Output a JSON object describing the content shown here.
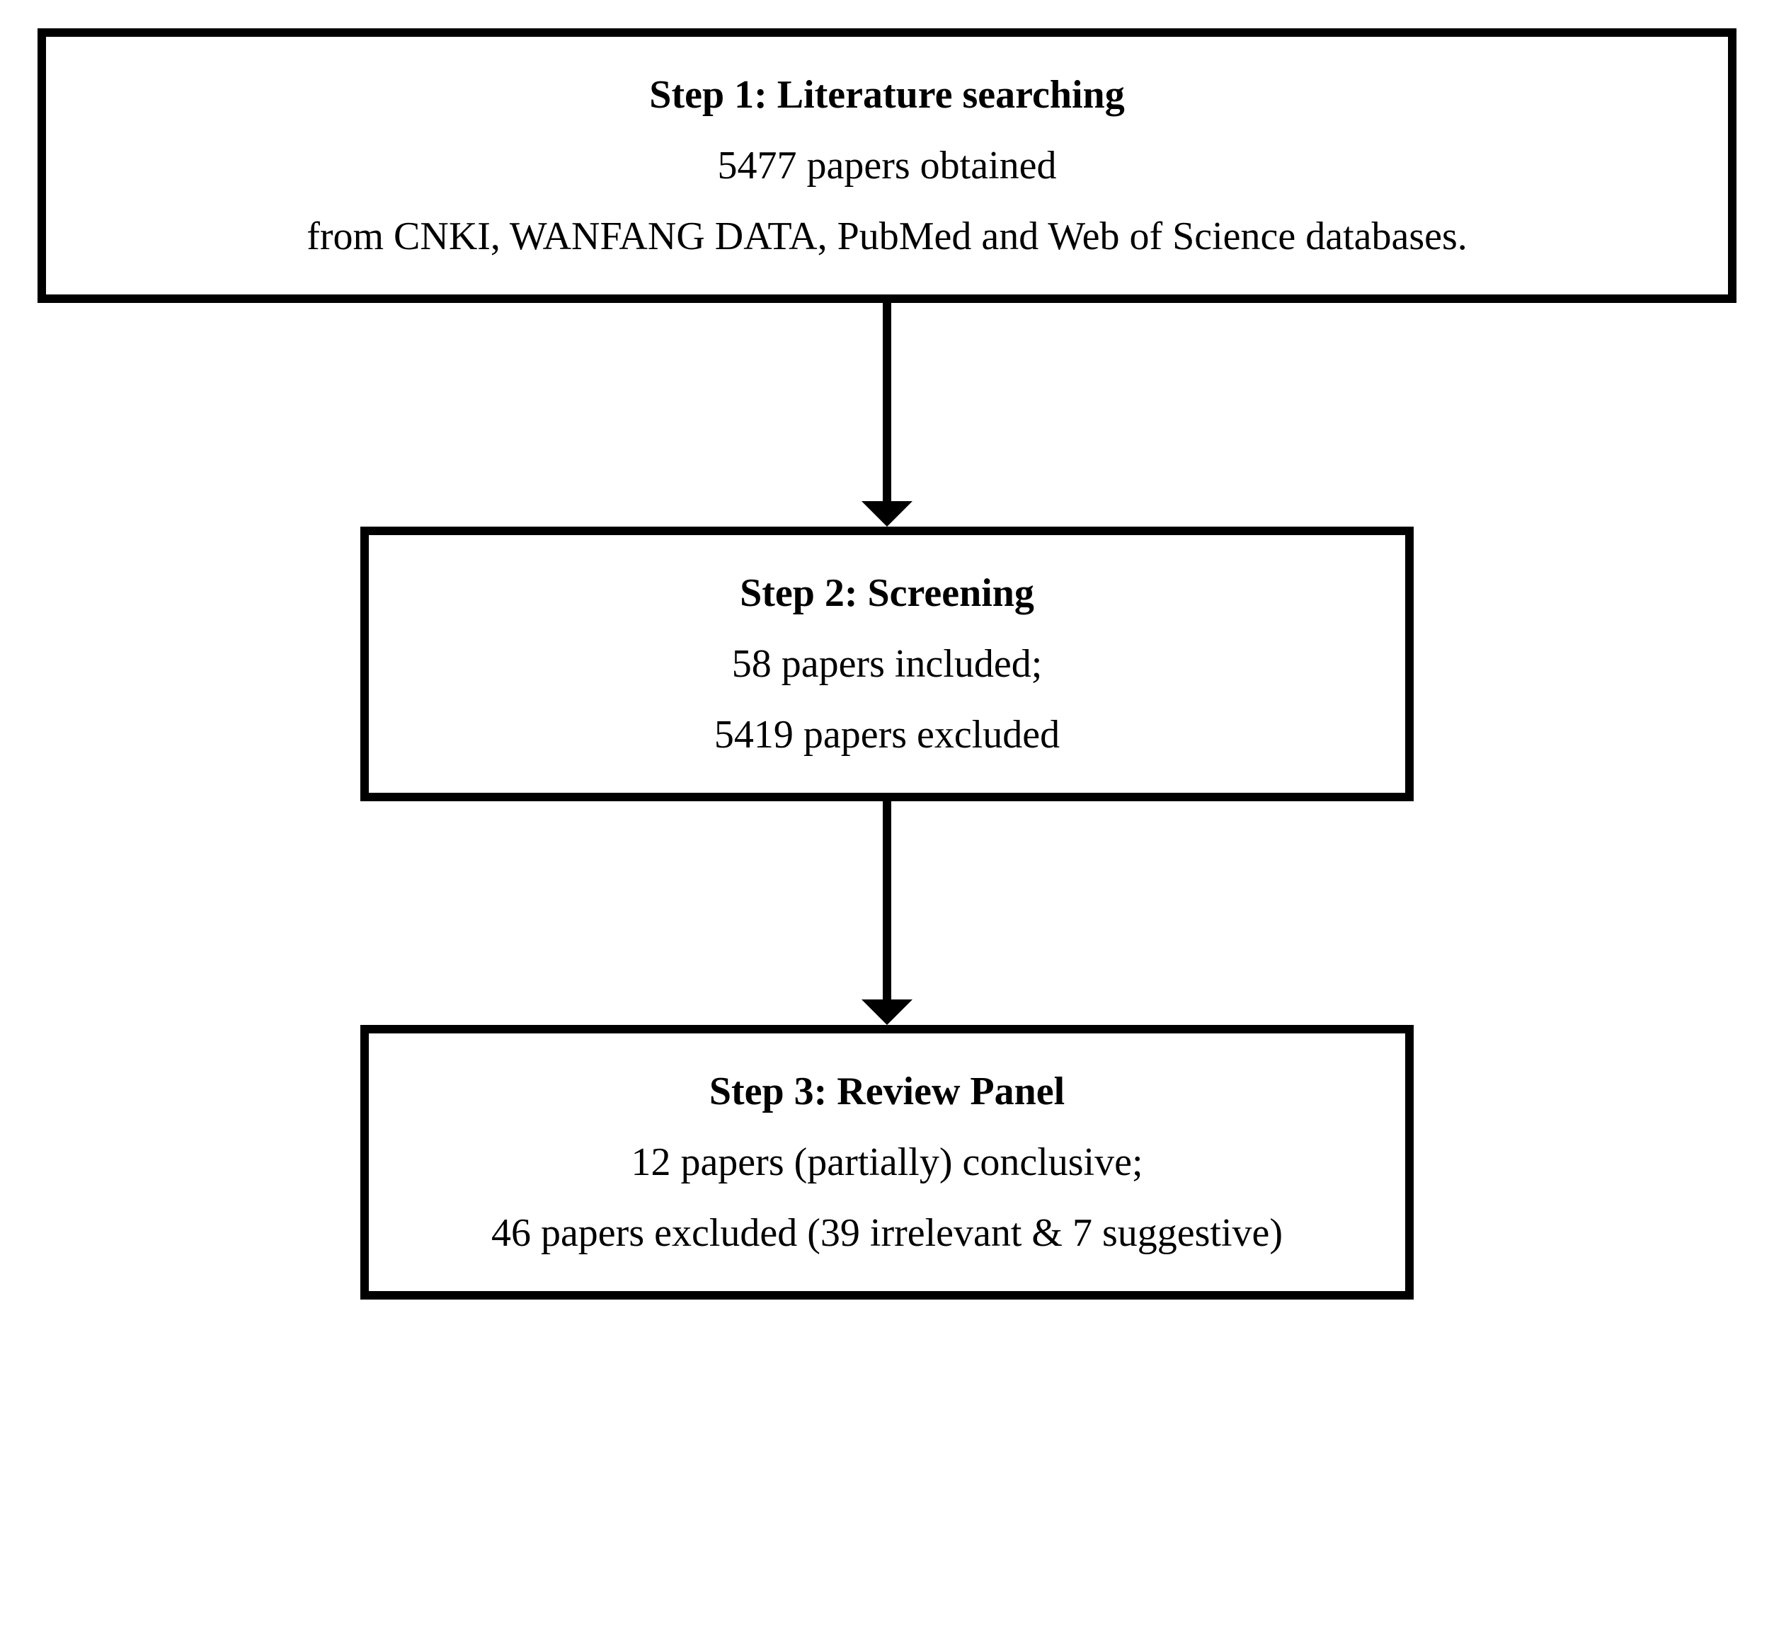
{
  "layout": {
    "box_border_width": 12,
    "box_border_color": "#000000",
    "background_color": "#ffffff",
    "font_family": "Times New Roman",
    "title_fontsize": 56,
    "body_fontsize": 56,
    "title_fontweight": "bold",
    "body_fontweight": "normal",
    "text_color": "#000000",
    "line_spacing": 36,
    "box_padding_vertical": 50,
    "box_padding_horizontal": 40
  },
  "arrow": {
    "shaft_width": 12,
    "shaft_height": 280,
    "head_width": 36,
    "head_height": 36,
    "color": "#000000"
  },
  "boxes": {
    "step1": {
      "width_percent": 100,
      "title": "Step 1: Literature searching",
      "lines": [
        "5477 papers obtained",
        "from CNKI, WANFANG DATA, PubMed and Web of Science databases."
      ]
    },
    "step2": {
      "width_percent": 62,
      "title": "Step 2: Screening",
      "lines": [
        "58 papers included;",
        "5419 papers excluded"
      ]
    },
    "step3": {
      "width_percent": 62,
      "title": "Step 3: Review Panel",
      "lines": [
        "12 papers (partially) conclusive;",
        "46 papers excluded (39 irrelevant & 7 suggestive)"
      ]
    }
  }
}
